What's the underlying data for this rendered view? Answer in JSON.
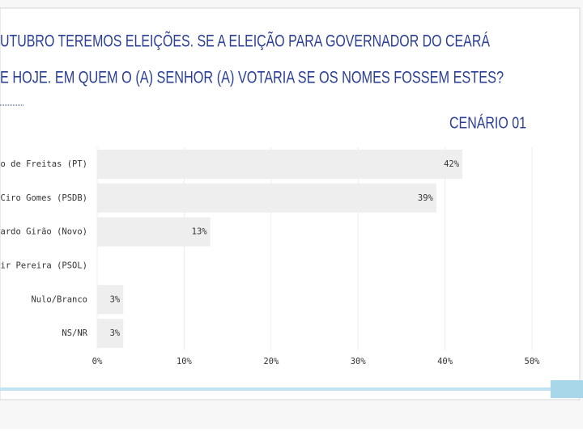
{
  "chart_data": {
    "type": "hbar",
    "title_lines": [
      "UTUBRO TEREMOS ELEIÇÕES. SE A ELEIÇÃO PARA GOVERNADOR DO CEARÁ",
      "E HOJE. EM QUEM O (A) SENHOR (A) VOTARIA SE OS NOMES FOSSEM ESTES?"
    ],
    "subtitle": "CENÁRIO 01",
    "categories": [
      "mano de Freitas (PT)",
      "Ciro Gomes (PSDB)",
      "Eduardo Girão (Novo)",
      "Jarir Pereira (PSOL)",
      "Nulo/Branco",
      "NS/NR"
    ],
    "values": [
      42,
      39,
      13,
      0,
      3,
      3
    ],
    "value_labels": [
      "42%",
      "39%",
      "13%",
      null,
      "3%",
      "3%"
    ],
    "color": "#eeeeee",
    "xlim": [
      0,
      50
    ],
    "xticks": [
      {
        "value": 0,
        "label": "0%"
      },
      {
        "value": 10,
        "label": "10%"
      },
      {
        "value": 20,
        "label": "20%"
      },
      {
        "value": 30,
        "label": "30%"
      },
      {
        "value": 40,
        "label": "40%"
      },
      {
        "value": 50,
        "label": "50%"
      }
    ],
    "grid": true
  }
}
